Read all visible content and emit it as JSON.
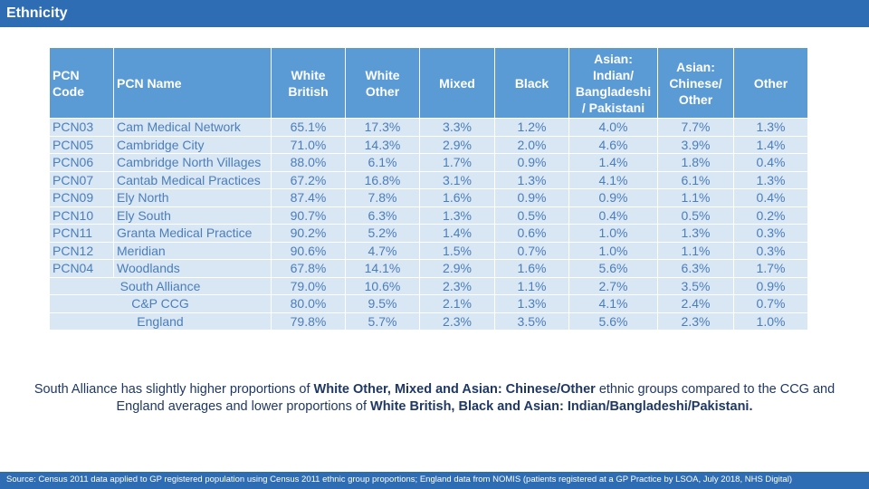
{
  "header": {
    "title": "Ethnicity"
  },
  "table": {
    "headers": [
      "PCN\nCode",
      "PCN Name",
      "White\nBritish",
      "White\nOther",
      "Mixed",
      "Black",
      "Asian:\nIndian/\nBangladeshi\n/ Pakistani",
      "Asian:\nChinese/\nOther",
      "Other"
    ],
    "rows": [
      [
        "PCN03",
        "Cam Medical Network",
        "65.1%",
        "17.3%",
        "3.3%",
        "1.2%",
        "4.0%",
        "7.7%",
        "1.3%"
      ],
      [
        "PCN05",
        "Cambridge City",
        "71.0%",
        "14.3%",
        "2.9%",
        "2.0%",
        "4.6%",
        "3.9%",
        "1.4%"
      ],
      [
        "PCN06",
        "Cambridge North Villages",
        "88.0%",
        "6.1%",
        "1.7%",
        "0.9%",
        "1.4%",
        "1.8%",
        "0.4%"
      ],
      [
        "PCN07",
        "Cantab Medical Practices",
        "67.2%",
        "16.8%",
        "3.1%",
        "1.3%",
        "4.1%",
        "6.1%",
        "1.3%"
      ],
      [
        "PCN09",
        "Ely North",
        "87.4%",
        "7.8%",
        "1.6%",
        "0.9%",
        "0.9%",
        "1.1%",
        "0.4%"
      ],
      [
        "PCN10",
        "Ely South",
        "90.7%",
        "6.3%",
        "1.3%",
        "0.5%",
        "0.4%",
        "0.5%",
        "0.2%"
      ],
      [
        "PCN11",
        "Granta Medical Practice",
        "90.2%",
        "5.2%",
        "1.4%",
        "0.6%",
        "1.0%",
        "1.3%",
        "0.3%"
      ],
      [
        "PCN12",
        "Meridian",
        "90.6%",
        "4.7%",
        "1.5%",
        "0.7%",
        "1.0%",
        "1.1%",
        "0.3%"
      ],
      [
        "PCN04",
        "Woodlands",
        "67.8%",
        "14.1%",
        "2.9%",
        "1.6%",
        "5.6%",
        "6.3%",
        "1.7%"
      ]
    ],
    "summary_rows": [
      [
        "South Alliance",
        "79.0%",
        "10.6%",
        "2.3%",
        "1.1%",
        "2.7%",
        "3.5%",
        "0.9%"
      ],
      [
        "C&P CCG",
        "80.0%",
        "9.5%",
        "2.1%",
        "1.3%",
        "4.1%",
        "2.4%",
        "0.7%"
      ],
      [
        "England",
        "79.8%",
        "5.7%",
        "2.3%",
        "3.5%",
        "5.6%",
        "2.3%",
        "1.0%"
      ]
    ]
  },
  "paragraph": [
    {
      "text": "South Alliance has slightly higher proportions of ",
      "bold": false
    },
    {
      "text": "White Other, Mixed and Asian: Chinese/Other",
      "bold": true
    },
    {
      "text": " ethnic groups compared to the CCG and England averages and lower proportions of ",
      "bold": false
    },
    {
      "text": "White British, Black and Asian: Indian/Bangladeshi/Pakistani.",
      "bold": true
    }
  ],
  "footer": {
    "source": "Source: Census 2011 data applied to GP registered population using Census 2011 ethnic group proportions; England data from NOMIS (patients registered at a GP Practice by LSOA, July 2018, NHS Digital)"
  }
}
